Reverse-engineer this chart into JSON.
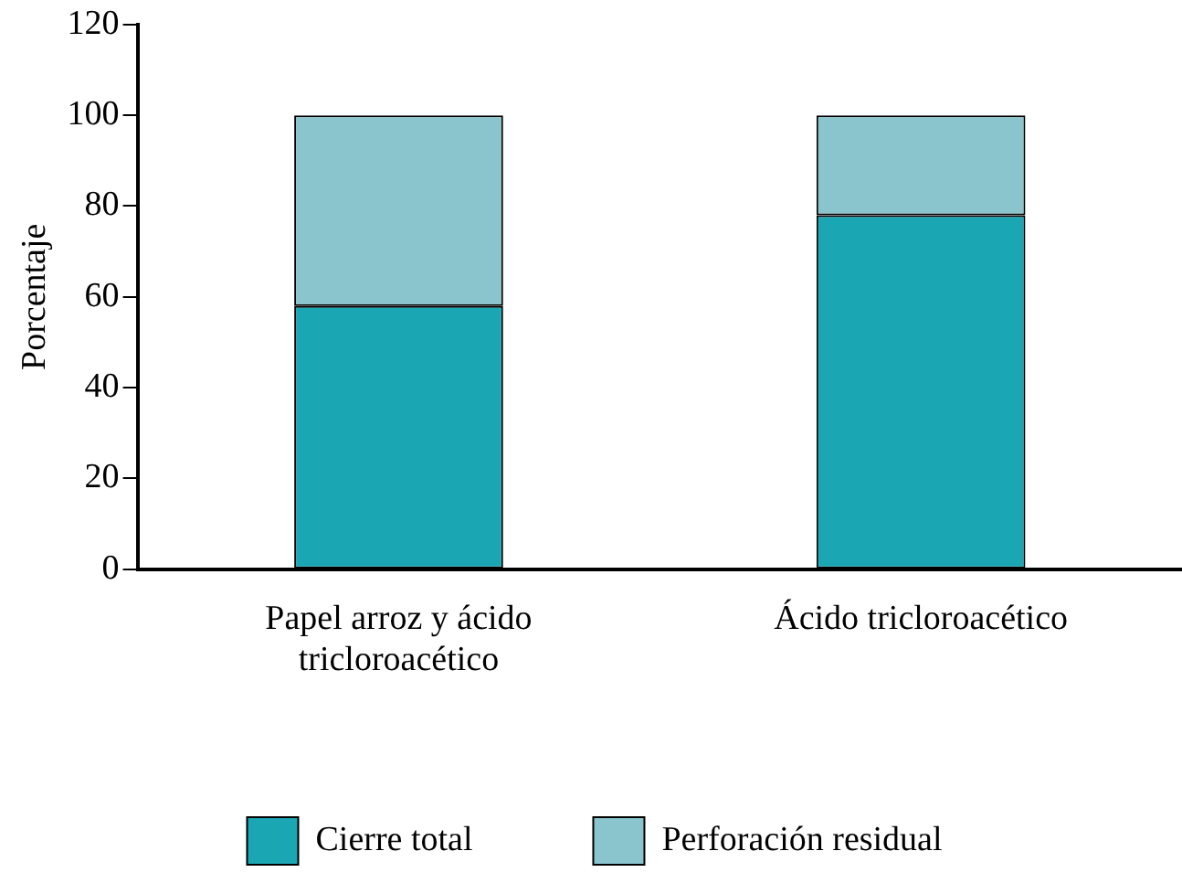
{
  "chart_data": {
    "type": "bar",
    "stacked": true,
    "ylabel": "Porcentaje",
    "categories": [
      "Papel arroz y ácido tricloroacético",
      "Ácido tricloroacético"
    ],
    "series": [
      {
        "name": "Cierre total",
        "color": "#1ba6b3",
        "values": [
          58,
          78
        ]
      },
      {
        "name": "Perforación residual",
        "color": "#8ac4cd",
        "values": [
          42,
          22
        ]
      }
    ],
    "ylim": [
      0,
      120
    ],
    "yticks": [
      0,
      20,
      40,
      60,
      80,
      100,
      120
    ],
    "grid": false,
    "legend": "bottom"
  }
}
